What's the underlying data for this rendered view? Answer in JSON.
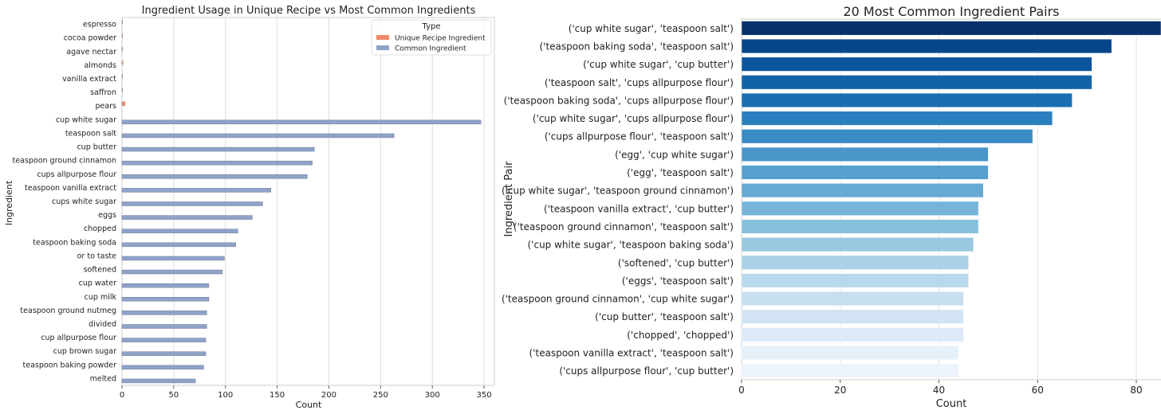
{
  "chart_data": [
    {
      "type": "bar",
      "orientation": "horizontal",
      "title": "Ingredient Usage in Unique Recipe vs Most Common Ingredients",
      "xlabel": "Count",
      "ylabel": "Ingredient",
      "xlim": [
        0,
        360
      ],
      "xticks": [
        0,
        50,
        100,
        150,
        200,
        250,
        300,
        350
      ],
      "grid": "vertical",
      "legend": {
        "title": "Type",
        "position": "top-right",
        "entries": [
          {
            "label": "Unique Recipe Ingredient",
            "color": "#ee8a67"
          },
          {
            "label": "Common Ingredient",
            "color": "#8fa2c8"
          }
        ]
      },
      "categories": [
        "espresso",
        "cocoa powder",
        "agave nectar",
        "almonds",
        "vanilla extract",
        "saffron",
        "pears",
        "cup white sugar",
        "teaspoon salt",
        "cup butter",
        "teaspoon ground cinnamon",
        "cups allpurpose flour",
        "teaspoon vanilla extract",
        "cups white sugar",
        "eggs",
        "chopped",
        "teaspoon baking soda",
        "or to taste",
        "softened",
        "cup water",
        "cup milk",
        "teaspoon ground nutmeg",
        "divided",
        "cup allpurpose flour",
        "cup brown sugar",
        "teaspoon baking powder",
        "melted"
      ],
      "series": [
        {
          "name": "Unique Recipe Ingredient",
          "color": "#ee8a67",
          "values": [
            0.3,
            0.3,
            0.3,
            1,
            0.3,
            0.3,
            3,
            0,
            0,
            0,
            0,
            0,
            0,
            0,
            0,
            0,
            0,
            0,
            0,
            0,
            0,
            0,
            0,
            0,
            0,
            0,
            0
          ]
        },
        {
          "name": "Common Ingredient",
          "color": "#8fa2c8",
          "values": [
            0,
            0,
            0,
            0,
            0,
            0,
            0,
            347,
            263,
            186,
            184,
            179,
            144,
            136,
            126,
            112,
            110,
            99,
            97,
            84,
            84,
            82,
            82,
            81,
            81,
            79,
            71
          ]
        }
      ]
    },
    {
      "type": "bar",
      "orientation": "horizontal",
      "title": "20 Most Common Ingredient Pairs",
      "xlabel": "Count",
      "ylabel": "Ingredient Pair",
      "xlim": [
        0,
        85
      ],
      "xticks": [
        0,
        20,
        40,
        60,
        80
      ],
      "grid": "vertical",
      "palette": "Blues (dark to light)",
      "colors": [
        "#08306b",
        "#08468a",
        "#0b559f",
        "#1163a8",
        "#1a6fb3",
        "#2a7fbf",
        "#3a8ac4",
        "#4a95c9",
        "#579fce",
        "#66aad3",
        "#76b5d8",
        "#87c0dd",
        "#98c9e1",
        "#a9d2e6",
        "#b8d9ec",
        "#c6dff0",
        "#d2e4f3",
        "#dcebf7",
        "#e6f0f9",
        "#eef4fb"
      ],
      "categories": [
        "('cup white sugar', 'teaspoon salt')",
        "('teaspoon baking soda', 'teaspoon salt')",
        "('cup white sugar', 'cup butter')",
        "('teaspoon salt', 'cups allpurpose flour')",
        "('teaspoon baking soda', 'cups allpurpose flour')",
        "('cup white sugar', 'cups allpurpose flour')",
        "('cups allpurpose flour', 'teaspoon salt')",
        "('egg', 'cup white sugar')",
        "('egg', 'teaspoon salt')",
        "('cup white sugar', 'teaspoon ground cinnamon')",
        "('teaspoon vanilla extract', 'cup butter')",
        "('teaspoon ground cinnamon', 'teaspoon salt')",
        "('cup white sugar', 'teaspoon baking soda')",
        "('softened', 'cup butter')",
        "('eggs', 'teaspoon salt')",
        "('teaspoon ground cinnamon', 'cup white sugar')",
        "('cup butter', 'teaspoon salt')",
        "('chopped', 'chopped')",
        "('teaspoon vanilla extract', 'teaspoon salt')",
        "('cups allpurpose flour', 'cup butter')"
      ],
      "values": [
        85,
        75,
        71,
        71,
        67,
        63,
        59,
        50,
        50,
        49,
        48,
        48,
        47,
        46,
        46,
        45,
        45,
        45,
        44,
        44
      ]
    }
  ]
}
